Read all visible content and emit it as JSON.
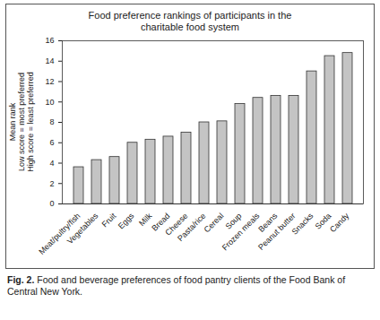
{
  "chart_data": {
    "type": "bar",
    "title": "Food preference rankings of participants in the charitable food system",
    "ylabel": [
      "Mean rank",
      "Low score = most preferred",
      "High score = least preferred"
    ],
    "categories": [
      "Meat/pultry/fish",
      "Vegetables",
      "Fruit",
      "Eggs",
      "Milk",
      "Bread",
      "Cheese",
      "Pasta/rice",
      "Cereal",
      "Soup",
      "Frozen meals",
      "Beans",
      "Peanut butter",
      "Snacks",
      "Soda",
      "Candy"
    ],
    "values": [
      3.6,
      4.3,
      4.6,
      6.0,
      6.3,
      6.6,
      7.0,
      8.0,
      8.1,
      9.8,
      10.4,
      10.6,
      10.6,
      13.0,
      14.5,
      14.8
    ],
    "color": "#c4c4c4",
    "ylim": [
      0,
      16
    ],
    "yticks": [
      0,
      2,
      4,
      6,
      8,
      10,
      12,
      14,
      16
    ],
    "grid": false,
    "caption_label": "Fig. 2.",
    "caption": "Food and beverage preferences of food pantry clients of the Food Bank of Central New York."
  }
}
